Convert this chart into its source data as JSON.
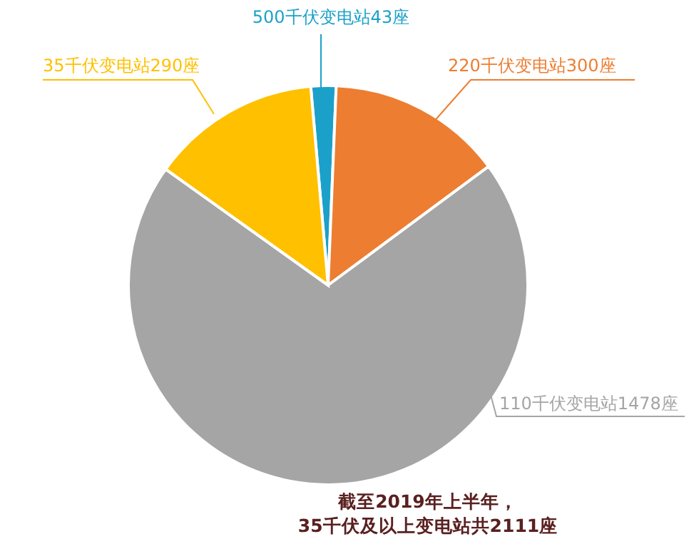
{
  "chart_data": {
    "type": "pie",
    "categories": [
      "500千伏变电站",
      "220千伏变电站",
      "110千伏变电站",
      "35千伏变电站"
    ],
    "values": [
      43,
      300,
      1478,
      290
    ],
    "value_labels": [
      "43座",
      "300座",
      "1478座",
      "290座"
    ],
    "colors": [
      "#1ba1c9",
      "#ed7d31",
      "#a5a5a5",
      "#ffc000"
    ],
    "annotations": [
      "截至2019年上半年，",
      "35千伏及以上变电站共2111座"
    ]
  }
}
